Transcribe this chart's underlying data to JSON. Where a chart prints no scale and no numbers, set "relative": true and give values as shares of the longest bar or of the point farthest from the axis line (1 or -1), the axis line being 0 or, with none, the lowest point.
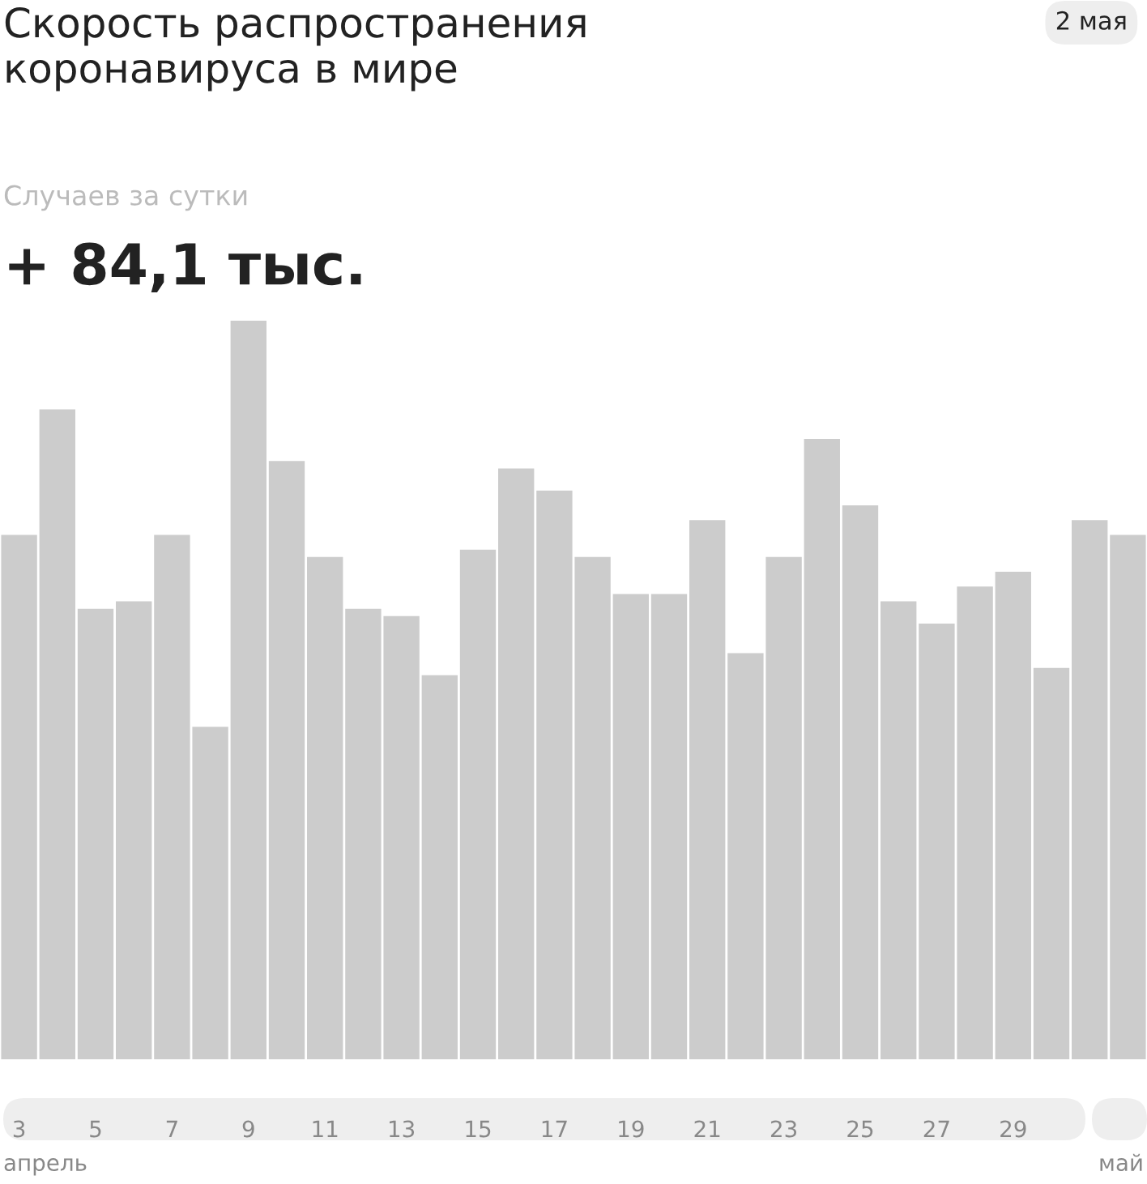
{
  "chart_data": {
    "type": "bar",
    "title": "Скорость распространения\nкоронавируса в мире",
    "subtitle": "Случаев за сутки",
    "annotations": [
      "2 мая",
      "+ 84,1 тыс.",
      "апрель",
      "май"
    ],
    "categories": [
      "3",
      null,
      "5",
      null,
      "7",
      null,
      "9",
      null,
      "11",
      null,
      "13",
      null,
      "15",
      null,
      "17",
      null,
      "19",
      null,
      "21",
      null,
      "23",
      null,
      "25",
      null,
      "27",
      null,
      "29",
      null,
      null,
      null
    ],
    "values": [
      0.71,
      0.88,
      0.61,
      0.62,
      0.71,
      0.45,
      1,
      0.81,
      0.68,
      0.61,
      0.6,
      0.52,
      0.69,
      0.8,
      0.77,
      0.68,
      0.63,
      0.63,
      0.73,
      0.55,
      0.68,
      0.84,
      0.75,
      0.62,
      0.59,
      0.64,
      0.66,
      0.53,
      0.73,
      0.71
    ],
    "color": "#cccccc",
    "relative": true,
    "grid": false,
    "legend": false
  }
}
